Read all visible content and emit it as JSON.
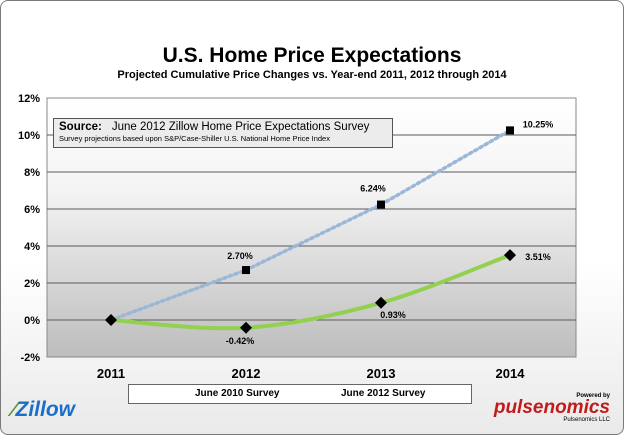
{
  "chart_data": {
    "type": "line",
    "title": "U.S. Home Price Expectations",
    "subtitle": "Projected Cumulative  Price Changes vs. Year-end 2011, 2012 through 2014",
    "categories": [
      "2011",
      "2012",
      "2013",
      "2014"
    ],
    "y_ticks": [
      "12%",
      "10%",
      "8%",
      "6%",
      "4%",
      "2%",
      "0%",
      "-2%"
    ],
    "ylim": [
      -2,
      12
    ],
    "series": [
      {
        "name": "June 2010 Survey",
        "values": [
          0,
          2.7,
          6.24,
          10.25
        ],
        "labels": [
          "",
          "2.70%",
          "6.24%",
          "10.25%"
        ],
        "color": "#9bb7d8",
        "style": "dotted",
        "marker": "square"
      },
      {
        "name": "June 2012 Survey",
        "values": [
          0,
          -0.42,
          0.93,
          3.51
        ],
        "labels": [
          "",
          "-0.42%",
          "0.93%",
          "3.51%"
        ],
        "color": "#92d050",
        "style": "solid",
        "marker": "diamond"
      }
    ]
  },
  "source": {
    "label": "Source:",
    "text": "June 2012 Zillow Home Price Expectations Survey",
    "note": "Survey projections based upon S&P/Case-Shiller U.S. National Home Price Index"
  },
  "logos": {
    "left": "Zillow",
    "powered_by": "Powered by",
    "right": "pulsenomics",
    "right_sub": "Pulsenomics LLC"
  }
}
